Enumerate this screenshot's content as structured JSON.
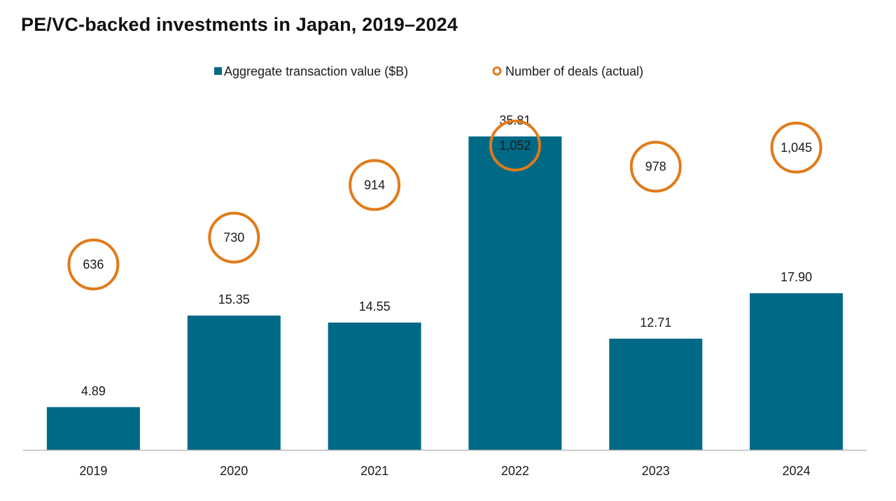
{
  "title": "PE/VC-backed investments in Japan, 2019–2024",
  "colors": {
    "bar": "#006a86",
    "deal_circle": "#e07b1a",
    "axis": "#bbbbbb"
  },
  "chart_data": {
    "type": "bar",
    "title": "PE/VC-backed investments in Japan, 2019–2024",
    "categories": [
      "2019",
      "2020",
      "2021",
      "2022",
      "2023",
      "2024"
    ],
    "series": [
      {
        "name": "Aggregate transaction value ($B)",
        "type": "bar",
        "values": [
          4.89,
          15.35,
          14.55,
          35.81,
          12.71,
          17.9
        ],
        "labels": [
          "4.89",
          "15.35",
          "14.55",
          "35.81",
          "12.71",
          "17.90"
        ]
      },
      {
        "name": "Number of deals (actual)",
        "type": "scatter",
        "marker": "circle-outline",
        "values": [
          636,
          730,
          914,
          1052,
          978,
          1045
        ],
        "labels": [
          "636",
          "730",
          "914",
          "1,052",
          "978",
          "1,045"
        ]
      }
    ],
    "legend": "top-center",
    "grid": false,
    "xlabel": "",
    "ylabel": ""
  }
}
